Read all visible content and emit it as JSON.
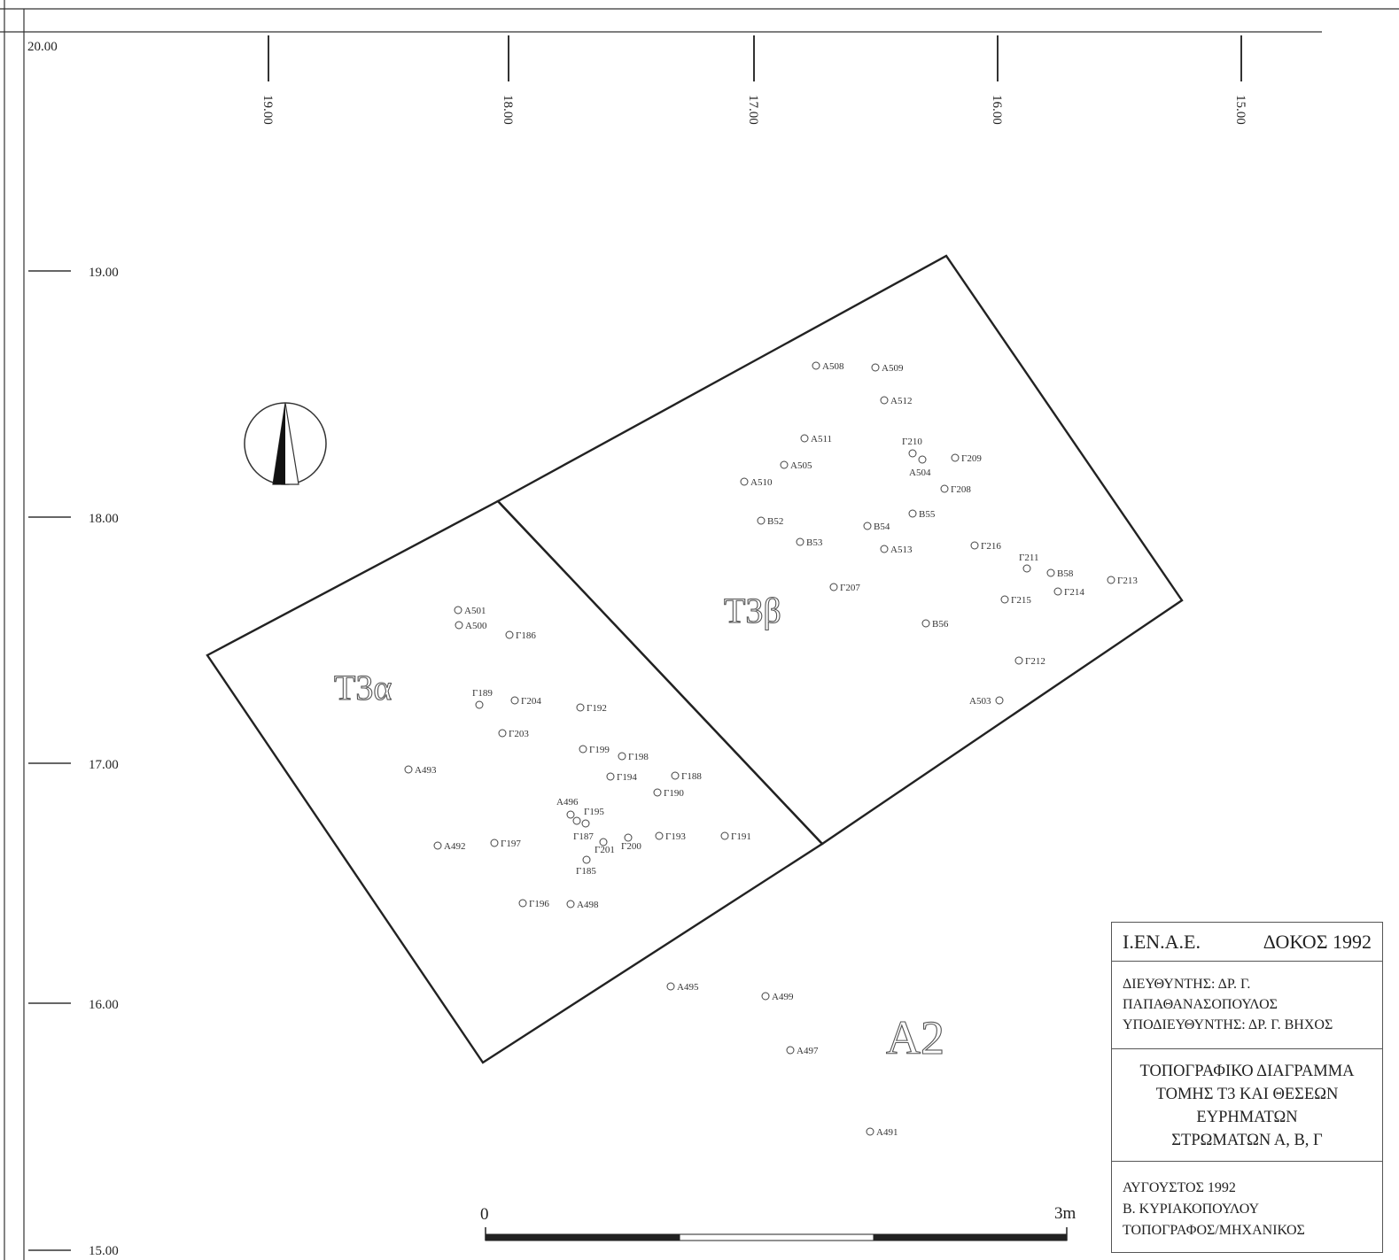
{
  "grid": {
    "corner_label": "20.00",
    "x_ticks": [
      "19.00",
      "18.00",
      "17.00",
      "16.00",
      "15.00"
    ],
    "y_ticks": [
      "19.00",
      "18.00",
      "17.00",
      "16.00",
      "15.00"
    ]
  },
  "north_arrow": {
    "icon": "north-arrow-icon"
  },
  "trenches": [
    {
      "name": "T3α",
      "label": "T3α"
    },
    {
      "name": "T3β",
      "label": "T3β"
    }
  ],
  "area_label": "A2",
  "finds": [
    "A508",
    "A509",
    "A512",
    "A511",
    "Γ210",
    "A504",
    "Γ209",
    "A505",
    "A510",
    "Γ208",
    "B55",
    "B52",
    "B54",
    "B53",
    "A513",
    "Γ216",
    "Γ211",
    "B58",
    "Γ213",
    "Γ214",
    "Γ207",
    "Γ215",
    "B56",
    "Γ212",
    "A503",
    "A501",
    "A500",
    "Γ186",
    "Γ189",
    "Γ204",
    "Γ192",
    "Γ203",
    "Γ199",
    "Γ198",
    "A493",
    "Γ194",
    "Γ188",
    "Γ190",
    "A496",
    "Γ195",
    "Γ187",
    "Γ201",
    "Γ200",
    "Γ193",
    "Γ191",
    "A492",
    "Γ197",
    "Γ185",
    "Γ196",
    "A498",
    "A495",
    "A499",
    "A497",
    "A491"
  ],
  "scale_bar": {
    "start_label": "0",
    "end_label": "3m",
    "length_m": 3
  },
  "title_block": {
    "institution": "Ι.ΕΝ.Α.Ε.",
    "site_year": "ΔΟΚΟΣ 1992",
    "director_line1": "ΔΙΕΥΘΥΝΤΗΣ: ΔΡ. Γ.",
    "director_line2": "ΠΑΠΑΘΑΝΑΣΟΠΟΥΛΟΣ",
    "deputy_line": "ΥΠΟΔΙΕΥΘΥΝΤΗΣ: ΔΡ. Γ. ΒΗΧΟΣ",
    "title_lines": [
      "ΤΟΠΟΓΡΑΦΙΚΟ ΔΙΑΓΡΑΜΜΑ",
      "ΤΟΜΗΣ Τ3 ΚΑΙ ΘΕΣΕΩΝ",
      "ΕΥΡΗΜΑΤΩΝ",
      "ΣΤΡΩΜΑΤΩΝ Α, Β, Γ"
    ],
    "date": "ΑΥΓΟΥΣΤΟΣ 1992",
    "surveyor": "Β. ΚΥΡΙΑΚΟΠΟΥΛΟΥ",
    "surveyor_role": "ΤΟΠΟΓΡΑΦΟΣ/ΜΗΧΑΝΙΚΟΣ"
  }
}
